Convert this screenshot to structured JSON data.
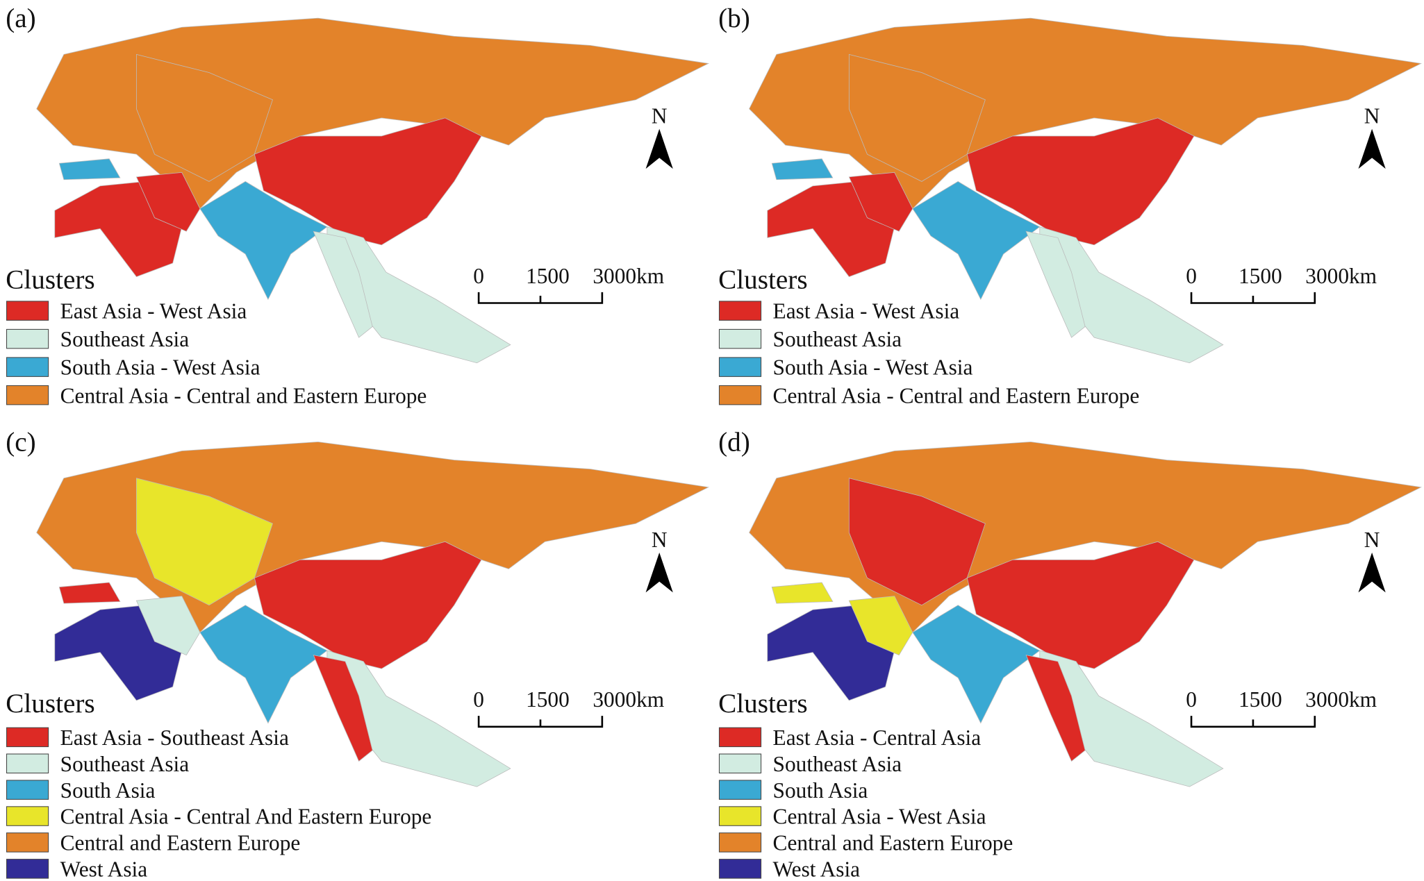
{
  "panels": [
    {
      "label": "(a)",
      "legend_title": "Clusters",
      "north": "N",
      "scale": [
        "0",
        "1500",
        "3000km"
      ],
      "legend": [
        {
          "label": "East Asia - West Asia",
          "color": "#dd2a25"
        },
        {
          "label": "Southeast Asia",
          "color": "#d2ece1"
        },
        {
          "label": "South Asia - West Asia",
          "color": "#3aa9d3"
        },
        {
          "label": "Central Asia - Central and Eastern Europe",
          "color": "#e3832a"
        }
      ]
    },
    {
      "label": "(b)",
      "legend_title": "Clusters",
      "north": "N",
      "scale": [
        "0",
        "1500",
        "3000km"
      ],
      "legend": [
        {
          "label": "East Asia - West Asia",
          "color": "#dd2a25"
        },
        {
          "label": "Southeast Asia",
          "color": "#d2ece1"
        },
        {
          "label": "South Asia - West Asia",
          "color": "#3aa9d3"
        },
        {
          "label": "Central Asia - Central and Eastern Europe",
          "color": "#e3832a"
        }
      ]
    },
    {
      "label": "(c)",
      "legend_title": "Clusters",
      "north": "N",
      "scale": [
        "0",
        "1500",
        "3000km"
      ],
      "legend": [
        {
          "label": "East Asia - Southeast Asia",
          "color": "#dd2a25"
        },
        {
          "label": "Southeast Asia",
          "color": "#d2ece1"
        },
        {
          "label": "South Asia",
          "color": "#3aa9d3"
        },
        {
          "label": "Central Asia - Central And Eastern Europe",
          "color": "#e8e52a"
        },
        {
          "label": "Central and Eastern Europe",
          "color": "#e3832a"
        },
        {
          "label": "West Asia",
          "color": "#322c97"
        }
      ]
    },
    {
      "label": "(d)",
      "legend_title": "Clusters",
      "north": "N",
      "scale": [
        "0",
        "1500",
        "3000km"
      ],
      "legend": [
        {
          "label": "East Asia - Central Asia",
          "color": "#dd2a25"
        },
        {
          "label": "Southeast Asia",
          "color": "#d2ece1"
        },
        {
          "label": "South Asia",
          "color": "#3aa9d3"
        },
        {
          "label": "Central Asia - West Asia",
          "color": "#e8e52a"
        },
        {
          "label": "Central and Eastern Europe",
          "color": "#e3832a"
        },
        {
          "label": "West Asia",
          "color": "#322c97"
        }
      ]
    }
  ]
}
